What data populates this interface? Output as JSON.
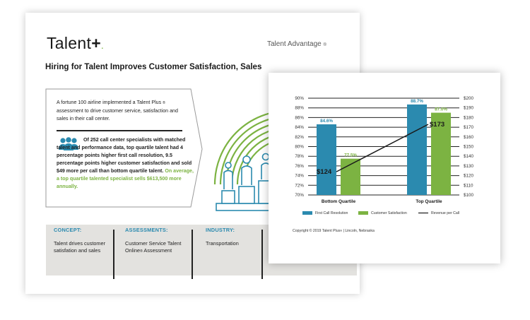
{
  "doc": {
    "logo_text": "Talent",
    "logo_plus": "+",
    "logo_dot": ".",
    "brand_tag": "Talent Advantage",
    "brand_tag_mark": "®",
    "headline": "Hiring for Talent Improves Customer Satisfaction, Sales",
    "intro_pre": "A fortune 100 airline implemented a Talent Plus",
    "intro_mark": "®",
    "intro_post": " assessment to drive customer service, satisfaction and sales in their call center.",
    "stats_main": "Of 252 call center specialists with matched talent and performance data, top quartile talent had 4 percentage points higher first call resolution, 9.5 percentage points higher customer satisfaction and sold $49 more per call than bottom quartile talent.",
    "stats_green": " On average, a top quartile talented specialist sells $613,500 more annually.",
    "concept_head": "CONCEPT:",
    "concept_body": "Talent drives customer satisfation and sales",
    "assess_head": "ASSESSMENTS:",
    "assess_body_pre": "Customer Service Talent Online",
    "assess_mark": "®",
    "assess_body_post": " Assessment",
    "industry_head": "INDUSTRY:",
    "industry_body": "Transportation"
  },
  "colors": {
    "blue": "#2b8aaf",
    "green": "#7cb342",
    "band": "#e3e2df"
  },
  "chart_data": {
    "type": "bar",
    "categories": [
      "Bottom Quartile",
      "Top Quartile"
    ],
    "series": [
      {
        "name": "First Call Resolution",
        "values": [
          84.6,
          88.7
        ],
        "labels": [
          "84.6%",
          "88.7%"
        ],
        "color": "#2b8aaf"
      },
      {
        "name": "Customer Satisfaction",
        "values": [
          77.5,
          87.0
        ],
        "labels": [
          "77.5%",
          "87.0%"
        ],
        "color": "#7cb342"
      }
    ],
    "line": {
      "name": "Revenue per Call",
      "values": [
        124,
        173
      ],
      "labels": [
        "$124",
        "$173"
      ],
      "color": "#1a1a1a"
    },
    "y_left": {
      "min": 70,
      "max": 90,
      "ticks": [
        "70%",
        "72%",
        "74%",
        "76%",
        "78%",
        "80%",
        "82%",
        "84%",
        "86%",
        "88%",
        "90%"
      ]
    },
    "y_right": {
      "min": 100,
      "max": 200,
      "ticks": [
        "$100",
        "$110",
        "$120",
        "$130",
        "$140",
        "$150",
        "$160",
        "$170",
        "$180",
        "$190",
        "$200"
      ]
    },
    "grid": true,
    "legend_position": "bottom",
    "copyright_pre": "Copyright © 2019 Talent Plus",
    "copyright_mark": "®",
    "copyright_post": " | Lincoln, Nebraska"
  }
}
